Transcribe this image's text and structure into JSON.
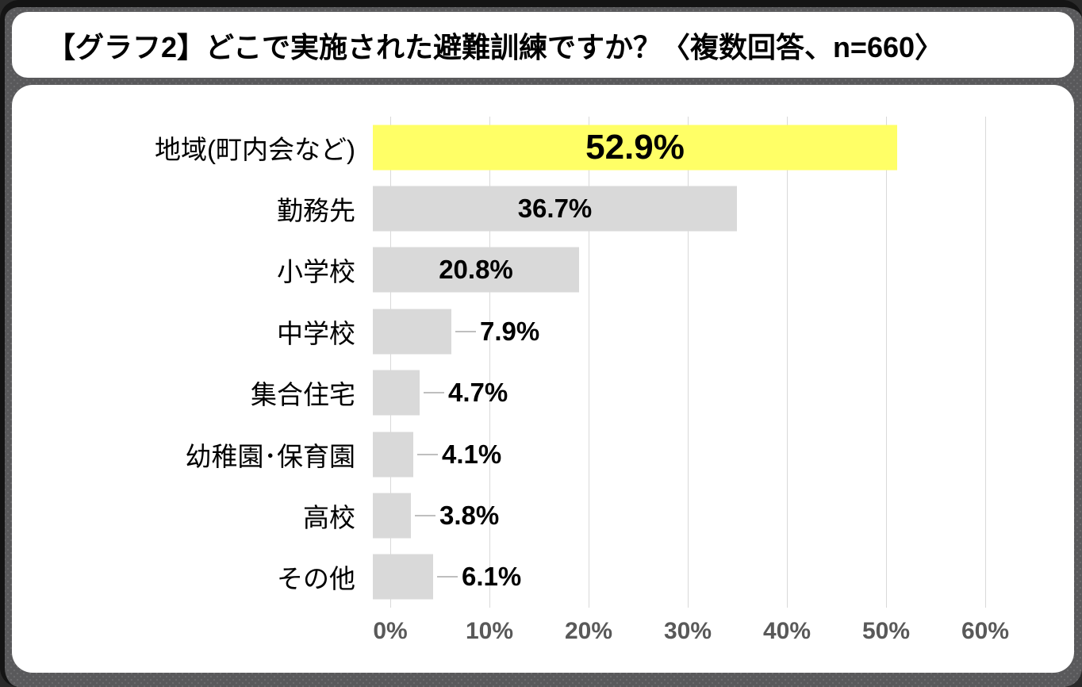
{
  "title": "【グラフ2】どこで実施された避難訓練ですか？〈複数回答、n=660〉",
  "chart_data": {
    "type": "bar",
    "orientation": "horizontal",
    "title": "【グラフ2】どこで実施された避難訓練ですか？〈複数回答、n=660〉",
    "sample_note": "複数回答、n=660",
    "categories": [
      "地域(町内会など)",
      "勤務先",
      "小学校",
      "中学校",
      "集合住宅",
      "幼稚園･保育園",
      "高校",
      "その他"
    ],
    "values": [
      52.9,
      36.7,
      20.8,
      7.9,
      4.7,
      4.1,
      3.8,
      6.1
    ],
    "value_labels": [
      "52.9%",
      "36.7%",
      "20.8%",
      "7.9%",
      "4.7%",
      "4.1%",
      "3.8%",
      "6.1%"
    ],
    "x_ticks": [
      "0%",
      "10%",
      "20%",
      "30%",
      "40%",
      "50%",
      "60%"
    ],
    "xlim": [
      0,
      60
    ],
    "grid": true,
    "highlight_index": 0,
    "colors": {
      "highlight_bar": "#ffff66",
      "bar": "#d9d9d9",
      "gridline": "#d9d9d9",
      "axis_text": "#595959",
      "value_text": "#000000",
      "category_text": "#000000",
      "leader_line": "#bfbfbf",
      "panel": "#ffffff",
      "background": "#59595b",
      "frame": "#141414"
    }
  }
}
